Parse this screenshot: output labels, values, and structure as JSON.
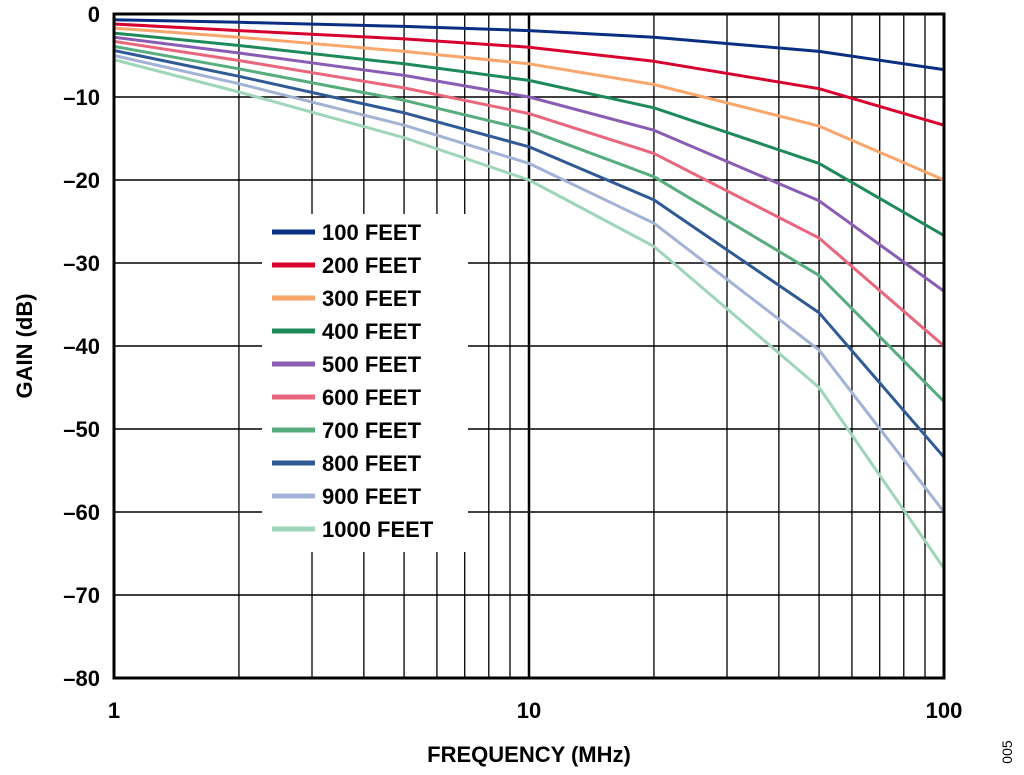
{
  "chart_data": {
    "type": "line",
    "xlabel": "FREQUENCY (MHz)",
    "ylabel": "GAIN (dB)",
    "x_scale": "log",
    "xlim": [
      1,
      100
    ],
    "ylim": [
      -80,
      0
    ],
    "x_ticks": [
      1,
      10,
      100
    ],
    "x_tick_labels": [
      "1",
      "10",
      "100"
    ],
    "y_ticks": [
      0,
      -10,
      -20,
      -30,
      -40,
      -50,
      -60,
      -70,
      -80
    ],
    "y_tick_labels": [
      "0",
      "–10",
      "–20",
      "–30",
      "–40",
      "–50",
      "–60",
      "–70",
      "–80"
    ],
    "grid": true,
    "legend_position": "center-left",
    "side_label": "005",
    "x": [
      1,
      2,
      5,
      10,
      20,
      50,
      100
    ],
    "series": [
      {
        "name": "100 FEET",
        "color": "#0a2f82",
        "values": [
          -0.7,
          -1.0,
          -1.5,
          -2.0,
          -2.8,
          -4.5,
          -6.7
        ]
      },
      {
        "name": "200 FEET",
        "color": "#d8002e",
        "values": [
          -1.2,
          -2.0,
          -3.0,
          -4.0,
          -5.7,
          -9.0,
          -13.4
        ]
      },
      {
        "name": "300 FEET",
        "color": "#f9a66c",
        "values": [
          -1.7,
          -2.8,
          -4.5,
          -6.0,
          -8.5,
          -13.5,
          -20.0
        ]
      },
      {
        "name": "400 FEET",
        "color": "#1e8a5a",
        "values": [
          -2.3,
          -3.8,
          -6.0,
          -8.0,
          -11.3,
          -18.0,
          -26.7
        ]
      },
      {
        "name": "500 FEET",
        "color": "#8a5db5",
        "values": [
          -2.8,
          -4.7,
          -7.4,
          -10.0,
          -14.0,
          -22.5,
          -33.4
        ]
      },
      {
        "name": "600 FEET",
        "color": "#e8677c",
        "values": [
          -3.3,
          -5.6,
          -8.9,
          -12.0,
          -16.8,
          -27.0,
          -40.0
        ]
      },
      {
        "name": "700 FEET",
        "color": "#57ad7e",
        "values": [
          -3.9,
          -6.6,
          -10.4,
          -14.0,
          -19.6,
          -31.5,
          -46.7
        ]
      },
      {
        "name": "800 FEET",
        "color": "#2f5a96",
        "values": [
          -4.4,
          -7.5,
          -11.9,
          -16.0,
          -22.4,
          -36.0,
          -53.4
        ]
      },
      {
        "name": "900 FEET",
        "color": "#a3b3d6",
        "values": [
          -5.0,
          -8.4,
          -13.4,
          -18.0,
          -25.2,
          -40.5,
          -60.0
        ]
      },
      {
        "name": "1000 FEET",
        "color": "#9fd5b9",
        "values": [
          -5.5,
          -9.4,
          -14.9,
          -20.0,
          -28.0,
          -45.0,
          -66.8
        ]
      }
    ]
  }
}
